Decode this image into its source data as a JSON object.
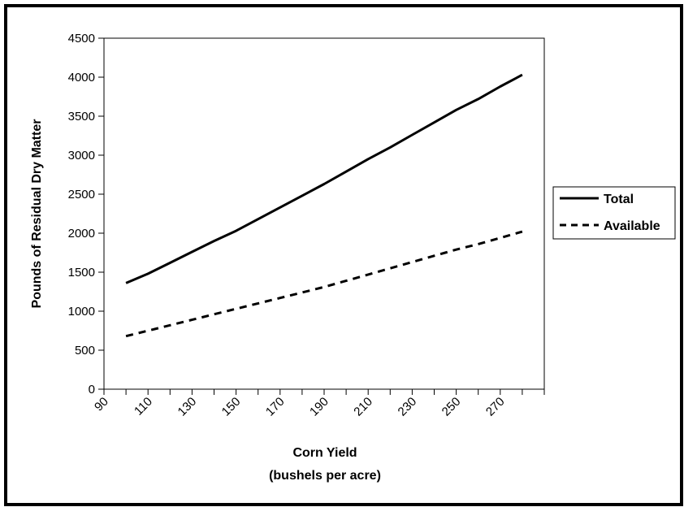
{
  "chart_data": {
    "type": "line",
    "title": "",
    "xlabel": "Corn Yield",
    "xlabel_sub": "(bushels per acre)",
    "ylabel": "Pounds of Residual Dry Matter",
    "ylim": [
      0,
      4500
    ],
    "yticks": [
      0,
      500,
      1000,
      1500,
      2000,
      2500,
      3000,
      3500,
      4000,
      4500
    ],
    "xlim": [
      90,
      290
    ],
    "xticks": [
      90,
      110,
      130,
      150,
      170,
      190,
      210,
      230,
      250,
      270
    ],
    "grid": false,
    "legend_position": "right",
    "x": [
      100,
      110,
      120,
      130,
      140,
      150,
      160,
      170,
      180,
      190,
      200,
      210,
      220,
      230,
      240,
      250,
      260,
      270,
      280
    ],
    "series": [
      {
        "name": "Total",
        "style": "solid",
        "color": "#000000",
        "values": [
          1360,
          1480,
          1620,
          1760,
          1900,
          2030,
          2180,
          2330,
          2480,
          2630,
          2790,
          2950,
          3100,
          3260,
          3420,
          3580,
          3720,
          3880,
          4030
        ]
      },
      {
        "name": "Available",
        "style": "dashed",
        "color": "#000000",
        "values": [
          680,
          750,
          820,
          890,
          960,
          1030,
          1100,
          1170,
          1240,
          1310,
          1390,
          1470,
          1550,
          1630,
          1710,
          1790,
          1860,
          1940,
          2020
        ]
      }
    ]
  }
}
